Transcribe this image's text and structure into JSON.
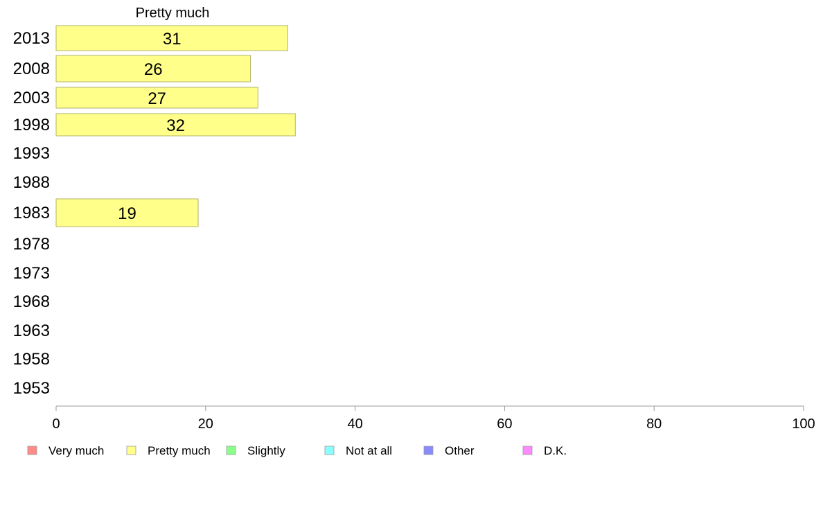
{
  "chart_data": {
    "type": "bar",
    "orientation": "horizontal",
    "title": "Pretty much",
    "categories": [
      "2013",
      "2008",
      "2003",
      "1998",
      "1993",
      "1988",
      "1983",
      "1978",
      "1973",
      "1968",
      "1963",
      "1958",
      "1953"
    ],
    "series": [
      {
        "name": "Pretty much",
        "values": [
          31,
          26,
          27,
          32,
          null,
          null,
          19,
          null,
          null,
          null,
          null,
          null,
          null
        ]
      }
    ],
    "xlim": [
      0,
      100
    ],
    "xticks": [
      "0",
      "20",
      "40",
      "60",
      "80",
      "100"
    ],
    "grid": false,
    "legend": {
      "placement": "bottom",
      "items": [
        {
          "label": "Very much",
          "color": "#ff8a8a"
        },
        {
          "label": "Pretty much",
          "color": "#ffff8a"
        },
        {
          "label": "Slightly",
          "color": "#8aff8a"
        },
        {
          "label": "Not at all",
          "color": "#8affff"
        },
        {
          "label": "Other",
          "color": "#8a8aff"
        },
        {
          "label": "D.K.",
          "color": "#ff8aff"
        }
      ]
    },
    "bar_color": "#ffff8a",
    "bar_stroke": "#b3b36b",
    "axis_color": "#999999"
  }
}
